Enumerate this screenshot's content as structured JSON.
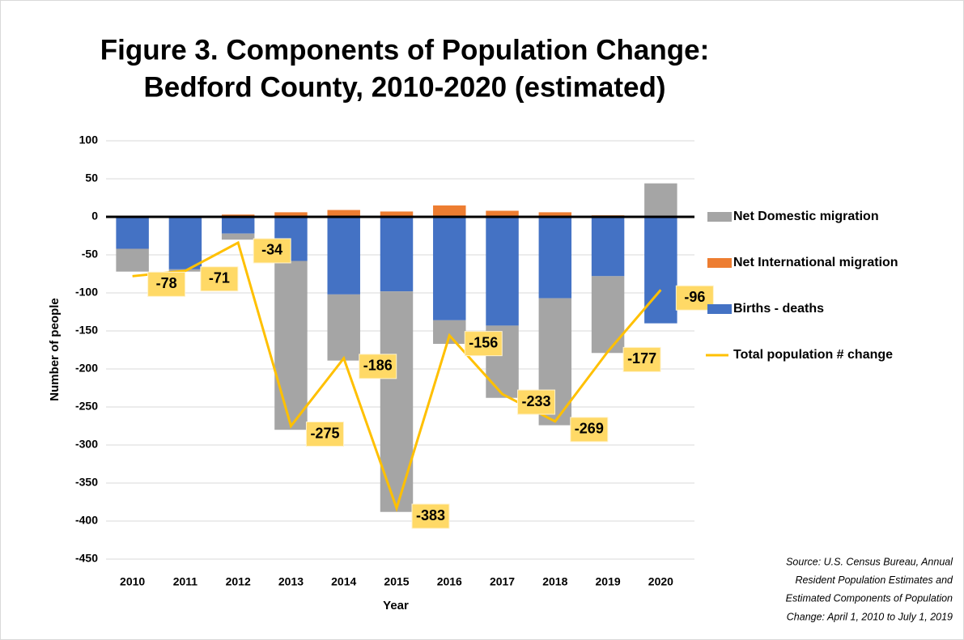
{
  "chart_data": {
    "type": "bar",
    "stacked": true,
    "title": [
      "Figure 3. Components of Population Change:",
      "Bedford County, 2010-2020 (estimated)"
    ],
    "y_label": "Number of people",
    "x_label": "Year",
    "categories": [
      "2010",
      "2011",
      "2012",
      "2013",
      "2014",
      "2015",
      "2016",
      "2017",
      "2018",
      "2019",
      "2020"
    ],
    "series": [
      {
        "name": "Net Domestic migration",
        "color": "#a5a5a5",
        "type": "bar",
        "values": [
          -30,
          -3,
          -8,
          -222,
          -87,
          -290,
          -31,
          -95,
          -167,
          -101,
          44
        ]
      },
      {
        "name": "Net International migration",
        "color": "#ed7d31",
        "type": "bar",
        "values": [
          0,
          1,
          3,
          6,
          9,
          7,
          15,
          8,
          6,
          2,
          0
        ]
      },
      {
        "name": "Births - deaths",
        "color": "#4472c4",
        "type": "bar",
        "values": [
          -42,
          -69,
          -22,
          -58,
          -102,
          -98,
          -136,
          -143,
          -107,
          -78,
          -140
        ]
      },
      {
        "name": "Total population # change",
        "color": "#ffc000",
        "type": "line",
        "values": [
          -78,
          -71,
          -34,
          -275,
          -186,
          -383,
          -156,
          -233,
          -269,
          -177,
          -96
        ]
      }
    ],
    "ylim": [
      -450,
      100
    ],
    "yticks": [
      -450,
      -400,
      -350,
      -300,
      -250,
      -200,
      -150,
      -100,
      -50,
      0,
      50,
      100
    ],
    "grid": true,
    "legend": "right",
    "source": [
      "Source: U.S. Census Bureau, Annual",
      "Resident Population Estimates and",
      "Estimated Components of Population",
      "Change: April 1, 2010 to July 1, 2019"
    ]
  }
}
